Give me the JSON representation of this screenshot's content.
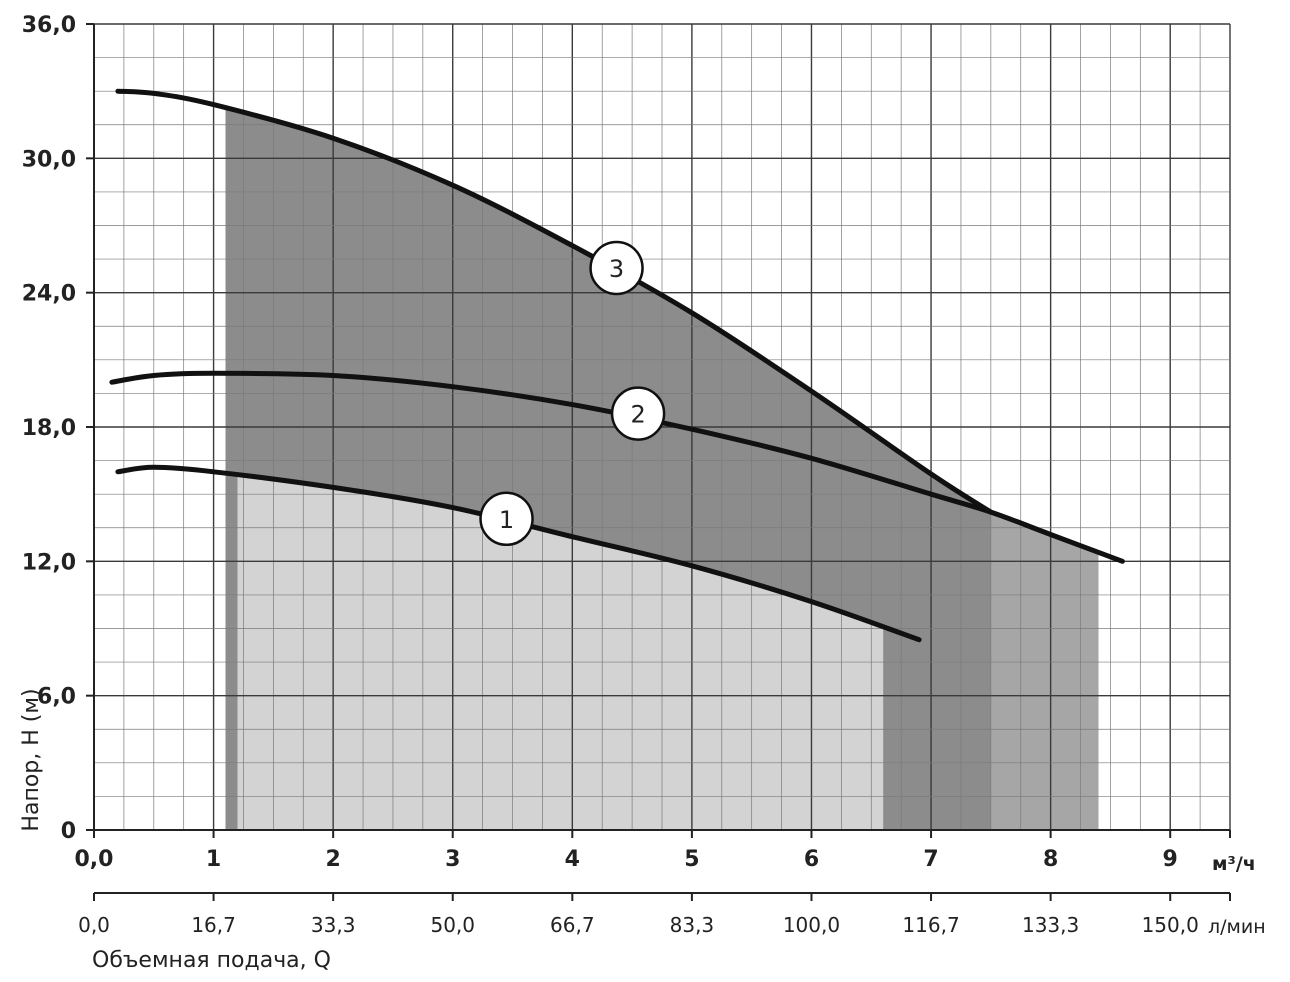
{
  "chart_data": {
    "type": "line",
    "title": "",
    "ylabel": "Напор, H (м)",
    "xlabel": "Объемная подача, Q",
    "x_unit_primary": "м³/ч",
    "x_unit_secondary": "л/мин",
    "xlim": [
      0,
      9.5
    ],
    "ylim": [
      0,
      36
    ],
    "grid": true,
    "y_ticks": [
      {
        "value": 0,
        "label": "0"
      },
      {
        "value": 6,
        "label": "6,0"
      },
      {
        "value": 12,
        "label": "12,0"
      },
      {
        "value": 18,
        "label": "18,0"
      },
      {
        "value": 24,
        "label": "24,0"
      },
      {
        "value": 30,
        "label": "30,0"
      },
      {
        "value": 36,
        "label": "36,0"
      }
    ],
    "x_ticks": [
      {
        "value": 0,
        "label": "0,0"
      },
      {
        "value": 1,
        "label": "1"
      },
      {
        "value": 2,
        "label": "2"
      },
      {
        "value": 3,
        "label": "3"
      },
      {
        "value": 4,
        "label": "4"
      },
      {
        "value": 5,
        "label": "5"
      },
      {
        "value": 6,
        "label": "6"
      },
      {
        "value": 7,
        "label": "7"
      },
      {
        "value": 8,
        "label": "8"
      },
      {
        "value": 9,
        "label": "9"
      }
    ],
    "x2_ticks": [
      {
        "value": 0,
        "label": "0,0"
      },
      {
        "value": 1,
        "label": "16,7"
      },
      {
        "value": 2,
        "label": "33,3"
      },
      {
        "value": 3,
        "label": "50,0"
      },
      {
        "value": 4,
        "label": "66,7"
      },
      {
        "value": 5,
        "label": "83,3"
      },
      {
        "value": 6,
        "label": "100,0"
      },
      {
        "value": 7,
        "label": "116,7"
      },
      {
        "value": 8,
        "label": "133,3"
      },
      {
        "value": 9,
        "label": "150,0"
      }
    ],
    "series": [
      {
        "name": "1",
        "label_at": [
          3.45,
          13.9
        ],
        "x": [
          0.2,
          0.5,
          1.0,
          2.0,
          3.0,
          4.0,
          5.0,
          6.0,
          6.9
        ],
        "y": [
          16.0,
          16.2,
          16.0,
          15.3,
          14.4,
          13.1,
          11.8,
          10.2,
          8.5
        ]
      },
      {
        "name": "2",
        "label_at": [
          4.55,
          18.6
        ],
        "x": [
          0.15,
          0.5,
          1.0,
          2.0,
          3.0,
          4.0,
          5.0,
          6.0,
          7.0,
          7.5,
          8.0,
          8.6
        ],
        "y": [
          20.0,
          20.3,
          20.4,
          20.3,
          19.8,
          19.0,
          17.9,
          16.6,
          15.0,
          14.2,
          13.2,
          12.0
        ]
      },
      {
        "name": "3",
        "label_at": [
          4.37,
          25.1
        ],
        "x": [
          0.2,
          0.5,
          1.0,
          2.0,
          3.0,
          4.0,
          5.0,
          6.0,
          7.0,
          7.5
        ],
        "y": [
          33.0,
          32.9,
          32.4,
          30.9,
          28.8,
          26.1,
          23.1,
          19.6,
          15.9,
          14.2
        ]
      }
    ],
    "operating_ranges": [
      {
        "series": "1",
        "x_min": 1.2,
        "x_max": 6.6,
        "color": "#d3d3d3"
      },
      {
        "series": "2",
        "x_min": 1.1,
        "x_max": 8.4,
        "color": "#a6a6a6"
      },
      {
        "series": "3",
        "x_min": 1.1,
        "x_max": 7.5,
        "color": "#8c8c8c"
      }
    ]
  }
}
